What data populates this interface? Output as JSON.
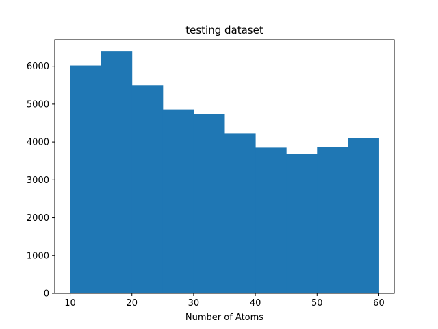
{
  "chart_data": {
    "type": "bar",
    "title": "testing dataset",
    "xlabel": "Number of Atoms",
    "ylabel": "",
    "bin_edges": [
      10,
      15,
      20,
      25,
      30,
      35,
      40,
      45,
      50,
      55,
      60
    ],
    "values": [
      6020,
      6390,
      5500,
      4860,
      4730,
      4230,
      3850,
      3690,
      3870,
      4100
    ],
    "xlim": [
      7.5,
      62.5
    ],
    "ylim": [
      0,
      6700
    ],
    "xticks": [
      10,
      20,
      30,
      40,
      50,
      60
    ],
    "yticks": [
      0,
      1000,
      2000,
      3000,
      4000,
      5000,
      6000
    ],
    "bar_color": "#1f77b4",
    "grid": false,
    "legend": "none"
  }
}
